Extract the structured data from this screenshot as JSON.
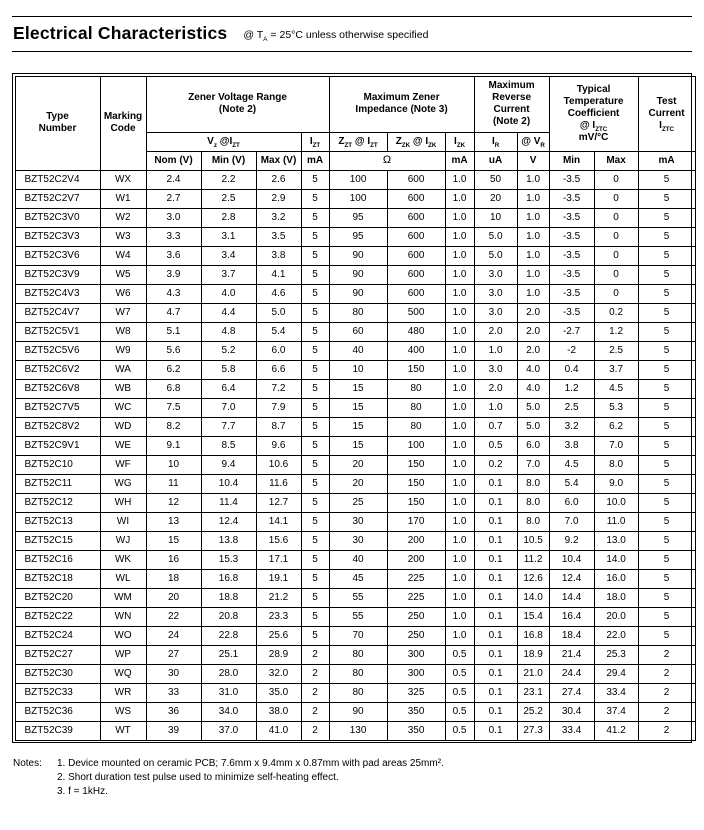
{
  "title": "Electrical Characteristics",
  "condition_parts": [
    {
      "t": "@ T"
    },
    {
      "s": "A"
    },
    {
      "t": " = 25°C unless otherwise specified"
    }
  ],
  "table": {
    "header": {
      "type_number": "Type\nNumber",
      "marking_code": "Marking\nCode",
      "zener_voltage_range": "Zener Voltage Range\n(Note 2)",
      "max_zener_impedance": "Maximum Zener\nImpedance (Note 3)",
      "max_reverse_current": "Maximum\nReverse\nCurrent\n(Note 2)",
      "temp_coeff_parts": [
        {
          "t": "Typical\nTemperature\nCoefficient\n@ I"
        },
        {
          "s": "ZTC"
        },
        {
          "t": "\nmV/°C"
        }
      ],
      "test_current_parts": [
        {
          "t": "Test\nCurrent\nI"
        },
        {
          "s": "ZTC"
        }
      ],
      "vz_at_izt_parts": [
        {
          "t": "V"
        },
        {
          "s": "z"
        },
        {
          "t": " @I"
        },
        {
          "s": "ZT"
        }
      ],
      "izt_parts": [
        {
          "t": "I"
        },
        {
          "s": "ZT"
        }
      ],
      "zzt_parts": [
        {
          "t": "Z"
        },
        {
          "s": "ZT"
        },
        {
          "t": " @ I"
        },
        {
          "s": "ZT"
        }
      ],
      "zzk_parts": [
        {
          "t": "Z"
        },
        {
          "s": "ZK"
        },
        {
          "t": " @ I"
        },
        {
          "s": "ZK"
        }
      ],
      "izk_parts": [
        {
          "t": "I"
        },
        {
          "s": "ZK"
        }
      ],
      "ir_parts": [
        {
          "t": "I"
        },
        {
          "s": "R"
        }
      ],
      "vr_parts": [
        {
          "t": "@ V"
        },
        {
          "s": "R"
        }
      ],
      "units": {
        "nom": "Nom (V)",
        "min": "Min (V)",
        "max": "Max (V)",
        "izt_ma": "mA",
        "ohm": "Ω",
        "izk_ma": "mA",
        "ir_ua": "uA",
        "vr_v": "V",
        "tc_min": "Min",
        "tc_max": "Max",
        "test_ma": "mA"
      }
    },
    "rows": [
      [
        "BZT52C2V4",
        "WX",
        "2.4",
        "2.2",
        "2.6",
        "5",
        "100",
        "600",
        "1.0",
        "50",
        "1.0",
        "-3.5",
        "0",
        "5"
      ],
      [
        "BZT52C2V7",
        "W1",
        "2.7",
        "2.5",
        "2.9",
        "5",
        "100",
        "600",
        "1.0",
        "20",
        "1.0",
        "-3.5",
        "0",
        "5"
      ],
      [
        "BZT52C3V0",
        "W2",
        "3.0",
        "2.8",
        "3.2",
        "5",
        "95",
        "600",
        "1.0",
        "10",
        "1.0",
        "-3.5",
        "0",
        "5"
      ],
      [
        "BZT52C3V3",
        "W3",
        "3.3",
        "3.1",
        "3.5",
        "5",
        "95",
        "600",
        "1.0",
        "5.0",
        "1.0",
        "-3.5",
        "0",
        "5"
      ],
      [
        "BZT52C3V6",
        "W4",
        "3.6",
        "3.4",
        "3.8",
        "5",
        "90",
        "600",
        "1.0",
        "5.0",
        "1.0",
        "-3.5",
        "0",
        "5"
      ],
      [
        "BZT52C3V9",
        "W5",
        "3.9",
        "3.7",
        "4.1",
        "5",
        "90",
        "600",
        "1.0",
        "3.0",
        "1.0",
        "-3.5",
        "0",
        "5"
      ],
      [
        "BZT52C4V3",
        "W6",
        "4.3",
        "4.0",
        "4.6",
        "5",
        "90",
        "600",
        "1.0",
        "3.0",
        "1.0",
        "-3.5",
        "0",
        "5"
      ],
      [
        "BZT52C4V7",
        "W7",
        "4.7",
        "4.4",
        "5.0",
        "5",
        "80",
        "500",
        "1.0",
        "3.0",
        "2.0",
        "-3.5",
        "0.2",
        "5"
      ],
      [
        "BZT52C5V1",
        "W8",
        "5.1",
        "4.8",
        "5.4",
        "5",
        "60",
        "480",
        "1.0",
        "2.0",
        "2.0",
        "-2.7",
        "1.2",
        "5"
      ],
      [
        "BZT52C5V6",
        "W9",
        "5.6",
        "5.2",
        "6.0",
        "5",
        "40",
        "400",
        "1.0",
        "1.0",
        "2.0",
        "-2",
        "2.5",
        "5"
      ],
      [
        "BZT52C6V2",
        "WA",
        "6.2",
        "5.8",
        "6.6",
        "5",
        "10",
        "150",
        "1.0",
        "3.0",
        "4.0",
        "0.4",
        "3.7",
        "5"
      ],
      [
        "BZT52C6V8",
        "WB",
        "6.8",
        "6.4",
        "7.2",
        "5",
        "15",
        "80",
        "1.0",
        "2.0",
        "4.0",
        "1.2",
        "4.5",
        "5"
      ],
      [
        "BZT52C7V5",
        "WC",
        "7.5",
        "7.0",
        "7.9",
        "5",
        "15",
        "80",
        "1.0",
        "1.0",
        "5.0",
        "2.5",
        "5.3",
        "5"
      ],
      [
        "BZT52C8V2",
        "WD",
        "8.2",
        "7.7",
        "8.7",
        "5",
        "15",
        "80",
        "1.0",
        "0.7",
        "5.0",
        "3.2",
        "6.2",
        "5"
      ],
      [
        "BZT52C9V1",
        "WE",
        "9.1",
        "8.5",
        "9.6",
        "5",
        "15",
        "100",
        "1.0",
        "0.5",
        "6.0",
        "3.8",
        "7.0",
        "5"
      ],
      [
        "BZT52C10",
        "WF",
        "10",
        "9.4",
        "10.6",
        "5",
        "20",
        "150",
        "1.0",
        "0.2",
        "7.0",
        "4.5",
        "8.0",
        "5"
      ],
      [
        "BZT52C11",
        "WG",
        "11",
        "10.4",
        "11.6",
        "5",
        "20",
        "150",
        "1.0",
        "0.1",
        "8.0",
        "5.4",
        "9.0",
        "5"
      ],
      [
        "BZT52C12",
        "WH",
        "12",
        "11.4",
        "12.7",
        "5",
        "25",
        "150",
        "1.0",
        "0.1",
        "8.0",
        "6.0",
        "10.0",
        "5"
      ],
      [
        "BZT52C13",
        "WI",
        "13",
        "12.4",
        "14.1",
        "5",
        "30",
        "170",
        "1.0",
        "0.1",
        "8.0",
        "7.0",
        "11.0",
        "5"
      ],
      [
        "BZT52C15",
        "WJ",
        "15",
        "13.8",
        "15.6",
        "5",
        "30",
        "200",
        "1.0",
        "0.1",
        "10.5",
        "9.2",
        "13.0",
        "5"
      ],
      [
        "BZT52C16",
        "WK",
        "16",
        "15.3",
        "17.1",
        "5",
        "40",
        "200",
        "1.0",
        "0.1",
        "11.2",
        "10.4",
        "14.0",
        "5"
      ],
      [
        "BZT52C18",
        "WL",
        "18",
        "16.8",
        "19.1",
        "5",
        "45",
        "225",
        "1.0",
        "0.1",
        "12.6",
        "12.4",
        "16.0",
        "5"
      ],
      [
        "BZT52C20",
        "WM",
        "20",
        "18.8",
        "21.2",
        "5",
        "55",
        "225",
        "1.0",
        "0.1",
        "14.0",
        "14.4",
        "18.0",
        "5"
      ],
      [
        "BZT52C22",
        "WN",
        "22",
        "20.8",
        "23.3",
        "5",
        "55",
        "250",
        "1.0",
        "0.1",
        "15.4",
        "16.4",
        "20.0",
        "5"
      ],
      [
        "BZT52C24",
        "WO",
        "24",
        "22.8",
        "25.6",
        "5",
        "70",
        "250",
        "1.0",
        "0.1",
        "16.8",
        "18.4",
        "22.0",
        "5"
      ],
      [
        "BZT52C27",
        "WP",
        "27",
        "25.1",
        "28.9",
        "2",
        "80",
        "300",
        "0.5",
        "0.1",
        "18.9",
        "21.4",
        "25.3",
        "2"
      ],
      [
        "BZT52C30",
        "WQ",
        "30",
        "28.0",
        "32.0",
        "2",
        "80",
        "300",
        "0.5",
        "0.1",
        "21.0",
        "24.4",
        "29.4",
        "2"
      ],
      [
        "BZT52C33",
        "WR",
        "33",
        "31.0",
        "35.0",
        "2",
        "80",
        "325",
        "0.5",
        "0.1",
        "23.1",
        "27.4",
        "33.4",
        "2"
      ],
      [
        "BZT52C36",
        "WS",
        "36",
        "34.0",
        "38.0",
        "2",
        "90",
        "350",
        "0.5",
        "0.1",
        "25.2",
        "30.4",
        "37.4",
        "2"
      ],
      [
        "BZT52C39",
        "WT",
        "39",
        "37.0",
        "41.0",
        "2",
        "130",
        "350",
        "0.5",
        "0.1",
        "27.3",
        "33.4",
        "41.2",
        "2"
      ]
    ]
  },
  "notes": {
    "label": "Notes:",
    "items": [
      "1. Device mounted on ceramic PCB; 7.6mm x 9.4mm x 0.87mm with pad areas 25mm².",
      "2. Short duration test pulse used to minimize self-heating effect.",
      "3. f = 1kHz."
    ]
  }
}
